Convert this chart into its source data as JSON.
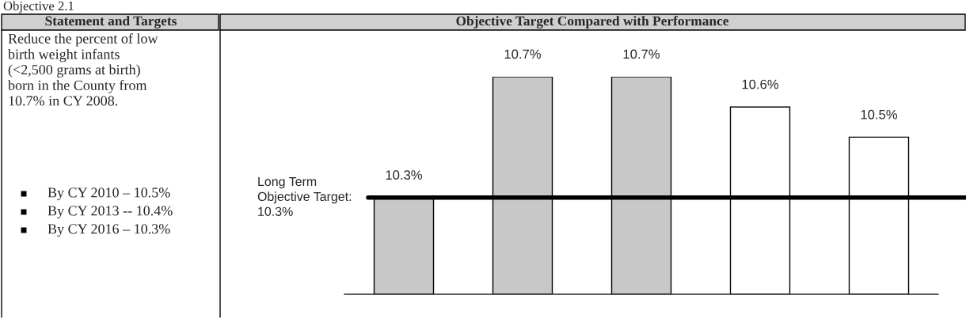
{
  "chart_data": {
    "type": "bar",
    "title": "Objective 2.1",
    "annotations": [
      "Statement and Targets",
      "Objective Target Compared with Performance",
      "Reduce the percent of low\nbirth weight infants\n(<2,500 grams at birth)\nborn in the County from\n10.7% in CY 2008.",
      "By CY 2010 – 10.5%",
      "By CY 2013 -- 10.4%",
      "By CY 2016 – 10.3%"
    ],
    "categories": [
      null,
      null,
      null,
      null,
      null
    ],
    "values": [
      10.3,
      10.7,
      10.7,
      10.6,
      10.5
    ],
    "colors": [
      "#c8c8c8",
      "#c8c8c8",
      "#c8c8c8",
      "#ffffff",
      "#ffffff"
    ],
    "value_labels": [
      "10.3%",
      "10.7%",
      "10.7%",
      "10.6%",
      "10.5%"
    ],
    "ylim": [
      9.98,
      10.7
    ],
    "ref_lines": [
      {
        "axis": "y",
        "value": 10.3,
        "label": "Long Term\nObjective Target:\n10.3%",
        "color": "#000000"
      }
    ],
    "grid": false,
    "legend": false
  }
}
